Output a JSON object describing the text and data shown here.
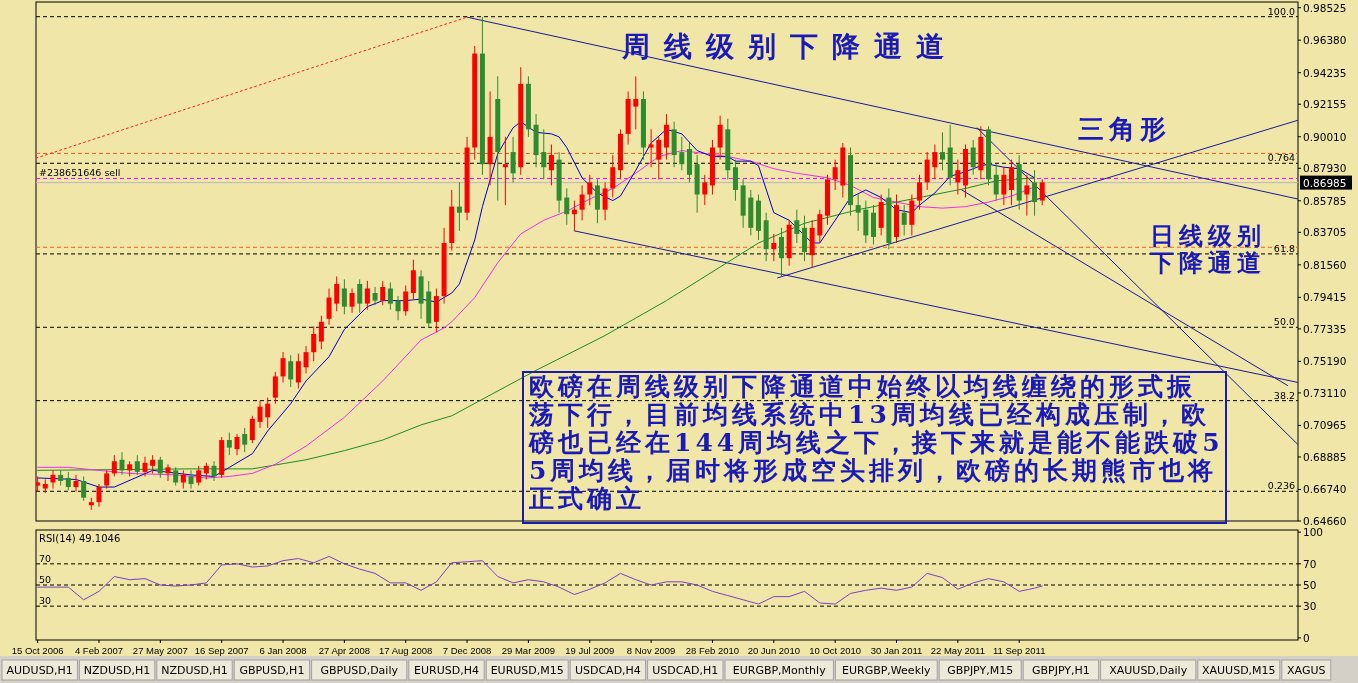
{
  "chart_data": [
    {
      "type": "candlestick",
      "xlim": [
        "2006-10-12",
        "2013-02-01"
      ],
      "ylim": [
        0.6466,
        0.989
      ],
      "tick_labels": "y",
      "yticks": [
        0.98525,
        {
          "value": 0.9638,
          "label": "0.96380"
        },
        0.94235,
        0.92155,
        {
          "value": 0.9001,
          "label": "0.90010"
        },
        {
          "value": 0.8793,
          "label": "0.87930"
        },
        0.85785,
        0.83705,
        {
          "value": 0.8156,
          "label": "0.81560"
        },
        0.79415,
        0.77335,
        {
          "value": 0.7519,
          "label": "0.75190"
        },
        {
          "value": 0.7311,
          "label": "0.73110"
        },
        0.70965,
        0.68885,
        {
          "value": 0.6674,
          "label": "0.66740"
        },
        {
          "value": 0.6466,
          "label": "0.64660"
        }
      ],
      "ref_lines": [
        {
          "axis": "y",
          "value": 0.9793,
          "color": "#000000",
          "line_style": "dashed"
        },
        {
          "axis": "y",
          "value": 0.8826,
          "color": "#000000",
          "line_style": "dashed"
        },
        {
          "axis": "y",
          "value": 0.8228,
          "color": "#000000",
          "line_style": "dashed"
        },
        {
          "axis": "y",
          "value": 0.7744,
          "color": "#000000",
          "line_style": "dashed"
        },
        {
          "axis": "y",
          "value": 0.726,
          "color": "#000000",
          "line_style": "dashed"
        },
        {
          "axis": "y",
          "value": 0.6662,
          "color": "#000000",
          "line_style": "dashed"
        },
        {
          "axis": "y",
          "value": 0.8891,
          "color": "#f06018",
          "line_style": "dashed"
        },
        {
          "axis": "y",
          "value": 0.8272,
          "color": "#f06018",
          "line_style": "dashed"
        },
        {
          "axis": "y",
          "value": 0.8726,
          "label": "#238651646 sell",
          "color": "#ff00ff",
          "line_style": "dashed"
        },
        {
          "axis": "y",
          "value": 0.86985,
          "label": "0.86985",
          "color": "#b8b8b8",
          "line_style": "solid"
        }
      ],
      "series": [
        {
          "type": "line",
          "color": "#ff2020",
          "line_style": "dotted",
          "x": [
            "2006-10-12",
            "2008-12-07"
          ],
          "values": [
            0.886,
            0.979
          ]
        },
        {
          "type": "line",
          "color": "#1a1a9a",
          "x": [
            "2008-12-07",
            "2013-02-01"
          ],
          "values": [
            0.979,
            0.859
          ]
        },
        {
          "type": "line",
          "color": "#1a1a9a",
          "x": [
            "2009-06-21",
            "2013-02-01"
          ],
          "values": [
            0.838,
            0.738
          ]
        },
        {
          "type": "line",
          "color": "#1a1a9a",
          "x": [
            "2010-06-27",
            "2013-02-01"
          ],
          "values": [
            0.807,
            0.911
          ]
        },
        {
          "type": "line",
          "color": "#1a1a9a",
          "x": [
            "2011-06-26",
            "2013-02-01"
          ],
          "values": [
            0.906,
            0.697
          ]
        },
        {
          "type": "line",
          "color": "#1a1a9a",
          "x": [
            "2011-05-29",
            "2013-01-13"
          ],
          "values": [
            0.865,
            0.736
          ]
        },
        {
          "type": "line",
          "color": "#228b22",
          "x": [
            "2006-10-15",
            "2007-07-22",
            "2007-11-11",
            "2008-02-17",
            "2008-04-27",
            "2008-07-06",
            "2008-09-14",
            "2008-11-09",
            "2009-04-12",
            "2009-08-16",
            "2009-12-06",
            "2010-05-23",
            "2010-08-15",
            "2010-11-21",
            "2011-03-13",
            "2011-06-05",
            "2011-07-31",
            "2011-10-09"
          ],
          "values": [
            0.68,
            0.681,
            0.681,
            0.687,
            0.693,
            0.7,
            0.71,
            0.716,
            0.746,
            0.769,
            0.792,
            0.83,
            0.843,
            0.852,
            0.86,
            0.866,
            0.871,
            0.873
          ]
        },
        {
          "type": "line",
          "color": "#ee30ee",
          "x": [
            "2006-10-15",
            "2006-12-10",
            "2007-04-01",
            "2007-06-24",
            "2007-08-19",
            "2007-09-30",
            "2007-11-11",
            "2007-12-23",
            "2008-02-17",
            "2008-04-27",
            "2008-07-06",
            "2008-09-14",
            "2008-10-26",
            "2008-11-09",
            "2008-12-21",
            "2009-02-01",
            "2009-03-15",
            "2009-04-26",
            "2009-06-07",
            "2009-07-19",
            "2009-08-30",
            "2009-10-11",
            "2009-11-22",
            "2010-01-03",
            "2010-02-14",
            "2010-03-28",
            "2010-05-09",
            "2010-06-20",
            "2010-08-01",
            "2010-09-26",
            "2010-11-07",
            "2010-12-19",
            "2011-01-30",
            "2011-03-13",
            "2011-04-24",
            "2011-06-05",
            "2011-07-17",
            "2011-08-28",
            "2011-10-09"
          ],
          "values": [
            0.682,
            0.682,
            0.678,
            0.677,
            0.675,
            0.676,
            0.678,
            0.684,
            0.696,
            0.715,
            0.739,
            0.766,
            0.774,
            0.778,
            0.794,
            0.817,
            0.836,
            0.845,
            0.851,
            0.859,
            0.866,
            0.876,
            0.887,
            0.891,
            0.889,
            0.887,
            0.884,
            0.879,
            0.876,
            0.873,
            0.868,
            0.86,
            0.857,
            0.854,
            0.853,
            0.854,
            0.857,
            0.861,
            0.867
          ]
        },
        {
          "type": "line",
          "color": "#0000c8",
          "x": [
            "2006-10-15",
            "2006-12-24",
            "2007-02-04",
            "2007-03-04",
            "2007-05-13",
            "2007-07-22",
            "2007-09-02",
            "2007-09-30",
            "2007-11-11",
            "2007-12-09",
            "2008-01-20",
            "2008-02-17",
            "2008-03-30",
            "2008-04-27",
            "2008-06-08",
            "2008-07-06",
            "2008-08-17",
            "2008-09-14",
            "2008-10-12",
            "2008-11-09",
            "2008-11-23",
            "2008-12-21",
            "2009-01-04",
            "2009-02-01",
            "2009-03-01",
            "2009-03-15",
            "2009-04-12",
            "2009-05-10",
            "2009-05-24",
            "2009-06-07",
            "2009-07-05",
            "2009-08-02",
            "2009-08-30",
            "2009-09-13",
            "2009-10-11",
            "2009-11-08",
            "2009-12-06",
            "2010-01-03",
            "2010-01-31",
            "2010-02-28",
            "2010-03-28",
            "2010-04-11",
            "2010-05-09",
            "2010-05-23",
            "2010-06-20",
            "2010-07-18",
            "2010-08-01",
            "2010-08-29",
            "2010-09-12",
            "2010-10-10",
            "2010-11-07",
            "2010-12-05",
            "2011-01-02",
            "2011-01-30",
            "2011-02-27",
            "2011-03-13",
            "2011-04-10",
            "2011-05-08",
            "2011-06-05",
            "2011-07-03",
            "2011-07-17",
            "2011-08-14",
            "2011-09-11",
            "2011-10-09"
          ],
          "values": [
            0.675,
            0.674,
            0.669,
            0.669,
            0.68,
            0.677,
            0.676,
            0.682,
            0.691,
            0.706,
            0.724,
            0.739,
            0.755,
            0.773,
            0.788,
            0.792,
            0.792,
            0.793,
            0.791,
            0.797,
            0.803,
            0.832,
            0.854,
            0.889,
            0.906,
            0.91,
            0.903,
            0.902,
            0.9,
            0.893,
            0.873,
            0.863,
            0.858,
            0.861,
            0.878,
            0.896,
            0.905,
            0.902,
            0.891,
            0.887,
            0.887,
            0.884,
            0.884,
            0.881,
            0.85,
            0.845,
            0.84,
            0.83,
            0.83,
            0.845,
            0.86,
            0.865,
            0.86,
            0.852,
            0.85,
            0.855,
            0.863,
            0.874,
            0.877,
            0.881,
            0.882,
            0.88,
            0.879,
            0.873
          ]
        },
        {
          "type": "candlestick",
          "x": [
            "2006-10-15",
            "2006-10-29",
            "2006-11-12",
            "2006-11-26",
            "2006-12-10",
            "2006-12-24",
            "2007-01-07",
            "2007-01-21",
            "2007-02-04",
            "2007-02-18",
            "2007-03-04",
            "2007-03-18",
            "2007-04-01",
            "2007-04-15",
            "2007-04-29",
            "2007-05-13",
            "2007-05-27",
            "2007-06-10",
            "2007-06-24",
            "2007-07-08",
            "2007-07-22",
            "2007-08-05",
            "2007-08-19",
            "2007-09-02",
            "2007-09-16",
            "2007-09-30",
            "2007-10-14",
            "2007-10-28",
            "2007-11-11",
            "2007-11-25",
            "2007-12-09",
            "2007-12-23",
            "2008-01-06",
            "2008-01-20",
            "2008-02-03",
            "2008-02-17",
            "2008-03-02",
            "2008-03-16",
            "2008-03-30",
            "2008-04-13",
            "2008-04-27",
            "2008-05-11",
            "2008-05-25",
            "2008-06-08",
            "2008-06-22",
            "2008-07-06",
            "2008-07-20",
            "2008-08-03",
            "2008-08-17",
            "2008-08-31",
            "2008-09-14",
            "2008-09-28",
            "2008-10-12",
            "2008-10-26",
            "2008-11-09",
            "2008-11-23",
            "2008-12-07",
            "2008-12-21",
            "2009-01-04",
            "2009-01-18",
            "2009-02-01",
            "2009-02-15",
            "2009-03-01",
            "2009-03-15",
            "2009-03-29",
            "2009-04-12",
            "2009-04-26",
            "2009-05-10",
            "2009-05-24",
            "2009-06-07",
            "2009-06-21",
            "2009-07-05",
            "2009-07-19",
            "2009-08-02",
            "2009-08-16",
            "2009-08-30",
            "2009-09-13",
            "2009-09-27",
            "2009-10-11",
            "2009-10-25",
            "2009-11-08",
            "2009-11-22",
            "2009-12-06",
            "2009-12-20",
            "2010-01-03",
            "2010-01-17",
            "2010-01-31",
            "2010-02-14",
            "2010-02-28",
            "2010-03-14",
            "2010-03-28",
            "2010-04-11",
            "2010-04-25",
            "2010-05-09",
            "2010-05-23",
            "2010-06-06",
            "2010-06-20",
            "2010-07-04",
            "2010-07-18",
            "2010-08-01",
            "2010-08-15",
            "2010-08-29",
            "2010-09-12",
            "2010-09-26",
            "2010-10-10",
            "2010-10-24",
            "2010-11-07",
            "2010-11-21",
            "2010-12-05",
            "2010-12-19",
            "2011-01-02",
            "2011-01-16",
            "2011-01-30",
            "2011-02-13",
            "2011-02-27",
            "2011-03-13",
            "2011-03-27",
            "2011-04-10",
            "2011-04-24",
            "2011-05-08",
            "2011-05-22",
            "2011-06-05",
            "2011-06-19",
            "2011-07-03",
            "2011-07-17",
            "2011-07-31",
            "2011-08-14",
            "2011-08-28",
            "2011-09-11",
            "2011-09-25",
            "2011-10-09",
            "2011-10-23"
          ],
          "ohlc": [
            [
              0.67,
              0.676,
              0.666,
              0.672
            ],
            [
              0.668,
              0.674,
              0.665,
              0.671
            ],
            [
              0.672,
              0.68,
              0.668,
              0.677
            ],
            [
              0.677,
              0.68,
              0.67,
              0.673
            ],
            [
              0.675,
              0.679,
              0.667,
              0.669
            ],
            [
              0.669,
              0.677,
              0.666,
              0.673
            ],
            [
              0.673,
              0.676,
              0.66,
              0.662
            ],
            [
              0.657,
              0.662,
              0.654,
              0.659
            ],
            [
              0.659,
              0.671,
              0.656,
              0.669
            ],
            [
              0.67,
              0.68,
              0.668,
              0.678
            ],
            [
              0.678,
              0.69,
              0.676,
              0.686
            ],
            [
              0.687,
              0.692,
              0.677,
              0.68
            ],
            [
              0.68,
              0.686,
              0.676,
              0.684
            ],
            [
              0.686,
              0.69,
              0.677,
              0.679
            ],
            [
              0.679,
              0.689,
              0.676,
              0.685
            ],
            [
              0.683,
              0.69,
              0.678,
              0.687
            ],
            [
              0.687,
              0.689,
              0.675,
              0.678
            ],
            [
              0.678,
              0.684,
              0.673,
              0.682
            ],
            [
              0.68,
              0.682,
              0.67,
              0.672
            ],
            [
              0.672,
              0.68,
              0.668,
              0.677
            ],
            [
              0.676,
              0.68,
              0.668,
              0.671
            ],
            [
              0.672,
              0.683,
              0.67,
              0.68
            ],
            [
              0.678,
              0.685,
              0.674,
              0.683
            ],
            [
              0.683,
              0.686,
              0.673,
              0.676
            ],
            [
              0.677,
              0.702,
              0.675,
              0.7
            ],
            [
              0.7,
              0.705,
              0.69,
              0.695
            ],
            [
              0.694,
              0.704,
              0.69,
              0.702
            ],
            [
              0.704,
              0.708,
              0.692,
              0.697
            ],
            [
              0.7,
              0.716,
              0.698,
              0.714
            ],
            [
              0.712,
              0.726,
              0.708,
              0.722
            ],
            [
              0.715,
              0.728,
              0.708,
              0.724
            ],
            [
              0.728,
              0.745,
              0.724,
              0.742
            ],
            [
              0.742,
              0.758,
              0.738,
              0.754
            ],
            [
              0.752,
              0.756,
              0.735,
              0.74
            ],
            [
              0.738,
              0.757,
              0.734,
              0.752
            ],
            [
              0.748,
              0.762,
              0.744,
              0.758
            ],
            [
              0.758,
              0.775,
              0.752,
              0.77
            ],
            [
              0.765,
              0.782,
              0.76,
              0.778
            ],
            [
              0.78,
              0.8,
              0.776,
              0.794
            ],
            [
              0.79,
              0.808,
              0.785,
              0.803
            ],
            [
              0.8,
              0.806,
              0.783,
              0.788
            ],
            [
              0.788,
              0.8,
              0.784,
              0.797
            ],
            [
              0.803,
              0.806,
              0.784,
              0.79
            ],
            [
              0.79,
              0.805,
              0.786,
              0.8
            ],
            [
              0.797,
              0.801,
              0.789,
              0.792
            ],
            [
              0.792,
              0.805,
              0.789,
              0.801
            ],
            [
              0.8,
              0.804,
              0.786,
              0.79
            ],
            [
              0.792,
              0.795,
              0.779,
              0.785
            ],
            [
              0.785,
              0.802,
              0.782,
              0.798
            ],
            [
              0.797,
              0.819,
              0.793,
              0.812
            ],
            [
              0.808,
              0.812,
              0.78,
              0.79
            ],
            [
              0.798,
              0.805,
              0.774,
              0.777
            ],
            [
              0.778,
              0.8,
              0.771,
              0.795
            ],
            [
              0.795,
              0.84,
              0.79,
              0.83
            ],
            [
              0.83,
              0.865,
              0.825,
              0.854
            ],
            [
              0.854,
              0.87,
              0.838,
              0.85
            ],
            [
              0.85,
              0.9,
              0.845,
              0.893
            ],
            [
              0.893,
              0.96,
              0.885,
              0.955
            ],
            [
              0.955,
              0.979,
              0.875,
              0.882
            ],
            [
              0.882,
              0.93,
              0.868,
              0.9
            ],
            [
              0.925,
              0.94,
              0.858,
              0.89
            ],
            [
              0.88,
              0.9,
              0.855,
              0.882
            ],
            [
              0.89,
              0.9,
              0.87,
              0.876
            ],
            [
              0.88,
              0.946,
              0.875,
              0.935
            ],
            [
              0.935,
              0.94,
              0.9,
              0.905
            ],
            [
              0.908,
              0.915,
              0.88,
              0.888
            ],
            [
              0.89,
              0.905,
              0.872,
              0.88
            ],
            [
              0.878,
              0.895,
              0.868,
              0.888
            ],
            [
              0.885,
              0.89,
              0.85,
              0.858
            ],
            [
              0.86,
              0.866,
              0.842,
              0.849
            ],
            [
              0.849,
              0.858,
              0.838,
              0.852
            ],
            [
              0.852,
              0.868,
              0.845,
              0.862
            ],
            [
              0.862,
              0.875,
              0.855,
              0.87
            ],
            [
              0.868,
              0.872,
              0.843,
              0.852
            ],
            [
              0.852,
              0.87,
              0.845,
              0.866
            ],
            [
              0.866,
              0.888,
              0.86,
              0.88
            ],
            [
              0.878,
              0.905,
              0.872,
              0.902
            ],
            [
              0.902,
              0.93,
              0.895,
              0.925
            ],
            [
              0.92,
              0.94,
              0.905,
              0.925
            ],
            [
              0.925,
              0.93,
              0.885,
              0.893
            ],
            [
              0.893,
              0.905,
              0.88,
              0.895
            ],
            [
              0.885,
              0.9,
              0.872,
              0.898
            ],
            [
              0.893,
              0.915,
              0.885,
              0.908
            ],
            [
              0.905,
              0.91,
              0.88,
              0.888
            ],
            [
              0.89,
              0.9,
              0.878,
              0.882
            ],
            [
              0.892,
              0.896,
              0.87,
              0.875
            ],
            [
              0.882,
              0.888,
              0.85,
              0.862
            ],
            [
              0.862,
              0.875,
              0.855,
              0.87
            ],
            [
              0.868,
              0.898,
              0.862,
              0.893
            ],
            [
              0.893,
              0.914,
              0.885,
              0.908
            ],
            [
              0.905,
              0.912,
              0.872,
              0.878
            ],
            [
              0.88,
              0.885,
              0.858,
              0.865
            ],
            [
              0.868,
              0.872,
              0.84,
              0.848
            ],
            [
              0.86,
              0.865,
              0.835,
              0.84
            ],
            [
              0.858,
              0.862,
              0.832,
              0.838
            ],
            [
              0.845,
              0.85,
              0.818,
              0.826
            ],
            [
              0.826,
              0.836,
              0.818,
              0.83
            ],
            [
              0.834,
              0.84,
              0.808,
              0.82
            ],
            [
              0.82,
              0.845,
              0.815,
              0.842
            ],
            [
              0.845,
              0.852,
              0.83,
              0.836
            ],
            [
              0.84,
              0.848,
              0.818,
              0.824
            ],
            [
              0.822,
              0.845,
              0.814,
              0.84
            ],
            [
              0.835,
              0.852,
              0.83,
              0.849
            ],
            [
              0.848,
              0.875,
              0.842,
              0.872
            ],
            [
              0.872,
              0.885,
              0.865,
              0.88
            ],
            [
              0.868,
              0.896,
              0.86,
              0.893
            ],
            [
              0.888,
              0.893,
              0.848,
              0.855
            ],
            [
              0.855,
              0.862,
              0.838,
              0.85
            ],
            [
              0.852,
              0.858,
              0.83,
              0.835
            ],
            [
              0.85,
              0.855,
              0.829,
              0.834
            ],
            [
              0.84,
              0.862,
              0.835,
              0.857
            ],
            [
              0.86,
              0.866,
              0.826,
              0.83
            ],
            [
              0.834,
              0.862,
              0.83,
              0.855
            ],
            [
              0.85,
              0.855,
              0.835,
              0.842
            ],
            [
              0.842,
              0.862,
              0.835,
              0.858
            ],
            [
              0.858,
              0.875,
              0.852,
              0.87
            ],
            [
              0.87,
              0.89,
              0.865,
              0.885
            ],
            [
              0.88,
              0.895,
              0.872,
              0.89
            ],
            [
              0.89,
              0.903,
              0.878,
              0.885
            ],
            [
              0.893,
              0.908,
              0.868,
              0.873
            ],
            [
              0.87,
              0.885,
              0.862,
              0.878
            ],
            [
              0.868,
              0.895,
              0.86,
              0.892
            ],
            [
              0.893,
              0.898,
              0.875,
              0.88
            ],
            [
              0.878,
              0.907,
              0.872,
              0.9
            ],
            [
              0.905,
              0.907,
              0.868,
              0.872
            ],
            [
              0.875,
              0.882,
              0.858,
              0.862
            ],
            [
              0.862,
              0.88,
              0.855,
              0.875
            ],
            [
              0.865,
              0.885,
              0.855,
              0.88
            ],
            [
              0.882,
              0.888,
              0.852,
              0.858
            ],
            [
              0.862,
              0.875,
              0.848,
              0.868
            ],
            [
              0.87,
              0.878,
              0.848,
              0.857
            ],
            [
              0.858,
              0.872,
              0.855,
              0.87
            ]
          ],
          "colors": [
            "#ff0000",
            "#ff0000",
            "#ff0000",
            "#2e8b2e",
            "#2e8b2e",
            "#ff0000",
            "#2e8b2e",
            "#ff0000",
            "#ff0000",
            "#ff0000",
            "#ff0000",
            "#2e8b2e",
            "#ff0000",
            "#2e8b2e",
            "#ff0000",
            "#ff0000",
            "#2e8b2e",
            "#ff0000",
            "#2e8b2e",
            "#ff0000",
            "#2e8b2e",
            "#ff0000",
            "#ff0000",
            "#2e8b2e",
            "#ff0000",
            "#2e8b2e",
            "#ff0000",
            "#2e8b2e",
            "#ff0000",
            "#ff0000",
            "#ff0000",
            "#ff0000",
            "#ff0000",
            "#2e8b2e",
            "#ff0000",
            "#ff0000",
            "#ff0000",
            "#ff0000",
            "#ff0000",
            "#ff0000",
            "#2e8b2e",
            "#ff0000",
            "#2e8b2e",
            "#ff0000",
            "#2e8b2e",
            "#ff0000",
            "#2e8b2e",
            "#2e8b2e",
            "#ff0000",
            "#ff0000",
            "#2e8b2e",
            "#2e8b2e",
            "#ff0000",
            "#ff0000",
            "#ff0000",
            "#2e8b2e",
            "#ff0000",
            "#ff0000",
            "#2e8b2e",
            "#ff0000",
            "#2e8b2e",
            "#ff0000",
            "#2e8b2e",
            "#ff0000",
            "#2e8b2e",
            "#2e8b2e",
            "#2e8b2e",
            "#ff0000",
            "#2e8b2e",
            "#2e8b2e",
            "#ff0000",
            "#ff0000",
            "#ff0000",
            "#2e8b2e",
            "#ff0000",
            "#ff0000",
            "#ff0000",
            "#ff0000",
            "#ff0000",
            "#2e8b2e",
            "#ff0000",
            "#ff0000",
            "#ff0000",
            "#2e8b2e",
            "#2e8b2e",
            "#2e8b2e",
            "#2e8b2e",
            "#ff0000",
            "#ff0000",
            "#ff0000",
            "#2e8b2e",
            "#2e8b2e",
            "#2e8b2e",
            "#2e8b2e",
            "#2e8b2e",
            "#2e8b2e",
            "#ff0000",
            "#2e8b2e",
            "#ff0000",
            "#2e8b2e",
            "#2e8b2e",
            "#ff0000",
            "#ff0000",
            "#ff0000",
            "#ff0000",
            "#ff0000",
            "#2e8b2e",
            "#2e8b2e",
            "#2e8b2e",
            "#2e8b2e",
            "#ff0000",
            "#2e8b2e",
            "#ff0000",
            "#2e8b2e",
            "#ff0000",
            "#ff0000",
            "#ff0000",
            "#ff0000",
            "#2e8b2e",
            "#2e8b2e",
            "#ff0000",
            "#ff0000",
            "#2e8b2e",
            "#ff0000",
            "#2e8b2e",
            "#2e8b2e",
            "#ff0000",
            "#ff0000",
            "#2e8b2e",
            "#ff0000",
            "#2e8b2e",
            "#ff0000"
          ]
        }
      ],
      "annotations": [
        "周线级别下降通道",
        "三角形",
        "日线级别下降通道",
        "欧磅在周线级别下降通道中始终以均线缠绕的形式振荡下行，目前均线系统中13周均线已经构成压制，欧磅也已经在144周均线之下，接下来就是能不能跌破55周均线，届时将形成空头排列，欧磅的长期熊市也将正式确立",
        {
          "text": "100.0",
          "x": "2013-02-01",
          "y": 0.9793
        },
        {
          "text": "0.764",
          "x": "2013-02-01",
          "y": 0.8826
        },
        {
          "text": "61.8",
          "x": "2013-02-01",
          "y": 0.8228
        },
        {
          "text": "50.0",
          "x": "2013-02-01",
          "y": 0.7744
        },
        {
          "text": "38.2",
          "x": "2013-02-01",
          "y": 0.726
        },
        {
          "text": "0.236",
          "x": "2013-02-01",
          "y": 0.6662
        }
      ]
    },
    {
      "type": "line",
      "title": "RSI(14) 49.1046",
      "xlim": [
        "2006-10-12",
        "2013-02-01"
      ],
      "ylim": [
        -2,
        102
      ],
      "yticks": [
        0,
        30,
        50,
        70,
        100
      ],
      "xticks": [
        {
          "value": "2006-10-15",
          "label": "15 Oct 2006"
        },
        {
          "value": "2007-02-04",
          "label": "4 Feb 2007"
        },
        {
          "value": "2007-05-27",
          "label": "27 May 2007"
        },
        {
          "value": "2007-09-16",
          "label": "16 Sep 2007"
        },
        {
          "value": "2008-01-06",
          "label": "6 Jan 2008"
        },
        {
          "value": "2008-04-27",
          "label": "27 Apr 2008"
        },
        {
          "value": "2008-08-17",
          "label": "17 Aug 2008"
        },
        {
          "value": "2008-12-07",
          "label": "7 Dec 2008"
        },
        {
          "value": "2009-03-29",
          "label": "29 Mar 2009"
        },
        {
          "value": "2009-07-19",
          "label": "19 Jul 2009"
        },
        {
          "value": "2009-11-08",
          "label": "8 Nov 2009"
        },
        {
          "value": "2010-02-28",
          "label": "28 Feb 2010"
        },
        {
          "value": "2010-06-20",
          "label": "20 Jun 2010"
        },
        {
          "value": "2010-10-10",
          "label": "10 Oct 2010"
        },
        {
          "value": "2011-01-30",
          "label": "30 Jan 2011"
        },
        {
          "value": "2011-05-22",
          "label": "22 May 2011"
        },
        {
          "value": "2011-09-11",
          "label": "11 Sep 2011"
        }
      ],
      "ref_lines": [
        {
          "axis": "y",
          "value": 70,
          "label": "70",
          "color": "#000000",
          "line_style": "dashed"
        },
        {
          "axis": "y",
          "value": 50,
          "label": "50",
          "color": "#000000",
          "line_style": "dashed"
        },
        {
          "axis": "y",
          "value": 30,
          "label": "30",
          "color": "#000000",
          "line_style": "dashed"
        }
      ],
      "series": [
        {
          "color": "#8040c0",
          "x": [
            "2006-10-15",
            "2006-11-12",
            "2006-12-10",
            "2007-01-07",
            "2007-02-04",
            "2007-03-04",
            "2007-04-01",
            "2007-04-29",
            "2007-05-27",
            "2007-06-24",
            "2007-07-22",
            "2007-08-19",
            "2007-09-16",
            "2007-10-14",
            "2007-11-11",
            "2007-12-09",
            "2008-01-06",
            "2008-02-03",
            "2008-03-02",
            "2008-03-30",
            "2008-04-27",
            "2008-05-25",
            "2008-06-22",
            "2008-07-20",
            "2008-08-17",
            "2008-09-14",
            "2008-10-12",
            "2008-11-09",
            "2008-12-07",
            "2009-01-04",
            "2009-02-01",
            "2009-03-01",
            "2009-03-29",
            "2009-04-26",
            "2009-05-24",
            "2009-06-21",
            "2009-07-19",
            "2009-08-16",
            "2009-09-13",
            "2009-10-11",
            "2009-11-08",
            "2009-12-06",
            "2010-01-03",
            "2010-01-31",
            "2010-02-28",
            "2010-03-28",
            "2010-04-25",
            "2010-05-23",
            "2010-06-20",
            "2010-07-18",
            "2010-08-15",
            "2010-09-12",
            "2010-10-10",
            "2010-11-07",
            "2010-12-05",
            "2011-01-02",
            "2011-01-30",
            "2011-02-27",
            "2011-03-27",
            "2011-04-24",
            "2011-05-22",
            "2011-06-19",
            "2011-07-17",
            "2011-08-14",
            "2011-09-11",
            "2011-10-09",
            "2011-10-23"
          ],
          "values": [
            48,
            48,
            48,
            36,
            44,
            58,
            55,
            56,
            50,
            49,
            50,
            52,
            69,
            70,
            67,
            68,
            73,
            75,
            71,
            77,
            70,
            65,
            61,
            52,
            52,
            45,
            53,
            71,
            72,
            73,
            58,
            52,
            55,
            53,
            48,
            41,
            46,
            52,
            61,
            55,
            50,
            53,
            53,
            50,
            44,
            40,
            36,
            32,
            39,
            39,
            44,
            33,
            32,
            42,
            45,
            47,
            45,
            48,
            61,
            57,
            46,
            52,
            56,
            53,
            44,
            47,
            49
          ]
        }
      ]
    },
    {
      "type": "other",
      "annotations": [
        "AUDUSD,H1",
        "NZDUSD,H1",
        "NZDUSD,H1",
        "GBPUSD,H1",
        "GBPUSD,Daily",
        "EURUSD,H4",
        "EURUSD,M15",
        "USDCAD,H4",
        "USDCAD,H1",
        "EURGBP,Monthly",
        "EURGBP,Weekly",
        "GBPJPY,M15",
        "GBPJPY,H1",
        "XAUUSD,Daily",
        "XAUUSD,M15",
        "XAGUS"
      ]
    }
  ]
}
